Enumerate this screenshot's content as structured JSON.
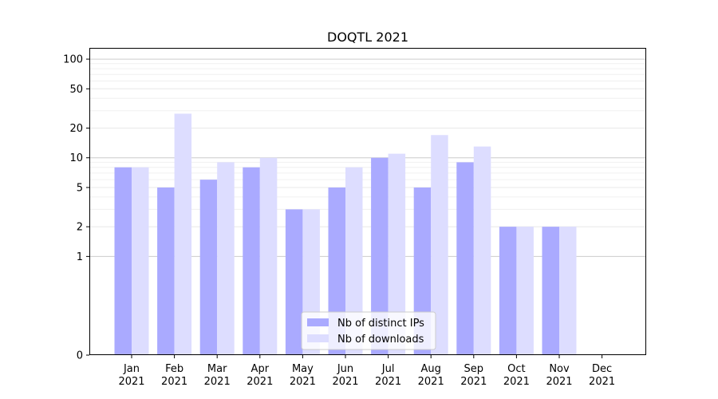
{
  "chart_data": {
    "type": "bar",
    "title": "DOQTL 2021",
    "xlabel": "",
    "ylabel": "",
    "y_scale": "symlog",
    "ylim": [
      0,
      130
    ],
    "y_ticks": [
      0,
      1,
      2,
      5,
      10,
      20,
      50,
      100
    ],
    "grid": true,
    "legend_position": "bottom-center",
    "categories": [
      {
        "month": "Jan",
        "year": "2021"
      },
      {
        "month": "Feb",
        "year": "2021"
      },
      {
        "month": "Mar",
        "year": "2021"
      },
      {
        "month": "Apr",
        "year": "2021"
      },
      {
        "month": "May",
        "year": "2021"
      },
      {
        "month": "Jun",
        "year": "2021"
      },
      {
        "month": "Jul",
        "year": "2021"
      },
      {
        "month": "Aug",
        "year": "2021"
      },
      {
        "month": "Sep",
        "year": "2021"
      },
      {
        "month": "Oct",
        "year": "2021"
      },
      {
        "month": "Nov",
        "year": "2021"
      },
      {
        "month": "Dec",
        "year": "2021"
      }
    ],
    "series": [
      {
        "name": "Nb of distinct IPs",
        "color": "#aaaaff",
        "values": [
          8,
          5,
          6,
          8,
          3,
          5,
          10,
          5,
          9,
          2,
          2,
          0
        ]
      },
      {
        "name": "Nb of downloads",
        "color": "#ddddff",
        "values": [
          8,
          28,
          9,
          10,
          3,
          8,
          11,
          17,
          13,
          2,
          2,
          0
        ]
      }
    ]
  }
}
